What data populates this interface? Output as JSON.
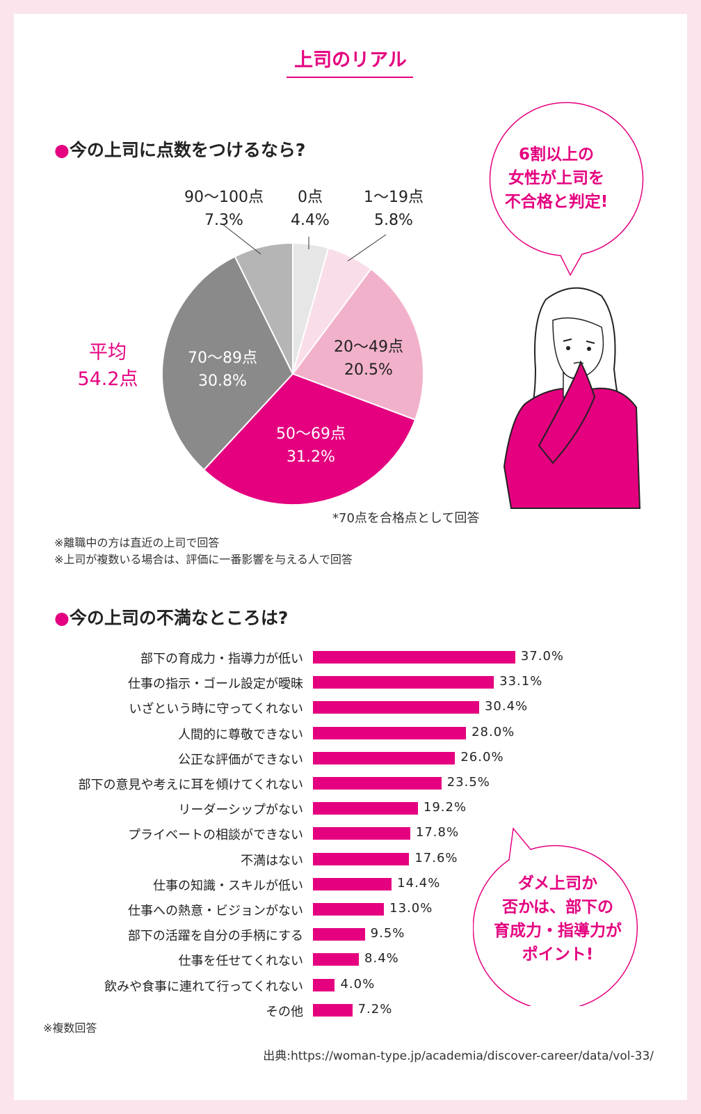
{
  "title": "上司のリアル",
  "colors": {
    "accent": "#e4007f",
    "frame": "#fbe4ec"
  },
  "pie_section": {
    "heading": "今の上司に点数をつけるなら?",
    "average_label": "平均",
    "average_value": "54.2点",
    "footnote_pass": "*70点を合格点として回答",
    "notes": [
      "※離職中の方は直近の上司で回答",
      "※上司が複数いる場合は、評価に一番影響を与える人で回答"
    ],
    "bubble": [
      "6割以上の",
      "女性が上司を",
      "不合格と判定!"
    ]
  },
  "bar_section": {
    "heading": "今の上司の不満なところは?",
    "note": "※複数回答",
    "bubble": [
      "ダメ上司か",
      "否かは、部下の",
      "育成力・指導力が",
      "ポイント!"
    ]
  },
  "source": "出典:https://woman-type.jp/academia/discover-career/data/vol-33/",
  "chart_data": [
    {
      "type": "pie",
      "categories": [
        "0点",
        "1〜19点",
        "20〜49点",
        "50〜69点",
        "70〜89点",
        "90〜100点"
      ],
      "values": [
        4.4,
        5.8,
        20.5,
        31.2,
        30.8,
        7.3
      ],
      "value_labels": [
        "4.4%",
        "5.8%",
        "20.5%",
        "31.2%",
        "30.8%",
        "7.3%"
      ],
      "colors": [
        "#e6e6e6",
        "#f9dde8",
        "#f2b1cb",
        "#e4007f",
        "#8a8a8a",
        "#b5b5b5"
      ],
      "unit": "%"
    },
    {
      "type": "bar",
      "orientation": "horizontal",
      "categories": [
        "部下の育成力・指導力が低い",
        "仕事の指示・ゴール設定が曖昧",
        "いざという時に守ってくれない",
        "人間的に尊敬できない",
        "公正な評価ができない",
        "部下の意見や考えに耳を傾けてくれない",
        "リーダーシップがない",
        "プライベートの相談ができない",
        "不満はない",
        "仕事の知識・スキルが低い",
        "仕事への熱意・ビジョンがない",
        "部下の活躍を自分の手柄にする",
        "仕事を任せてくれない",
        "飲みや食事に連れて行ってくれない",
        "その他"
      ],
      "values": [
        37.0,
        33.1,
        30.4,
        28.0,
        26.0,
        23.5,
        19.2,
        17.8,
        17.6,
        14.4,
        13.0,
        9.5,
        8.4,
        4.0,
        7.2
      ],
      "value_labels": [
        "37.0%",
        "33.1%",
        "30.4%",
        "28.0%",
        "26.0%",
        "23.5%",
        "19.2%",
        "17.8%",
        "17.6%",
        "14.4%",
        "13.0%",
        "9.5%",
        "8.4%",
        "4.0%",
        "7.2%"
      ],
      "color": "#e4007f",
      "unit": "%"
    }
  ]
}
